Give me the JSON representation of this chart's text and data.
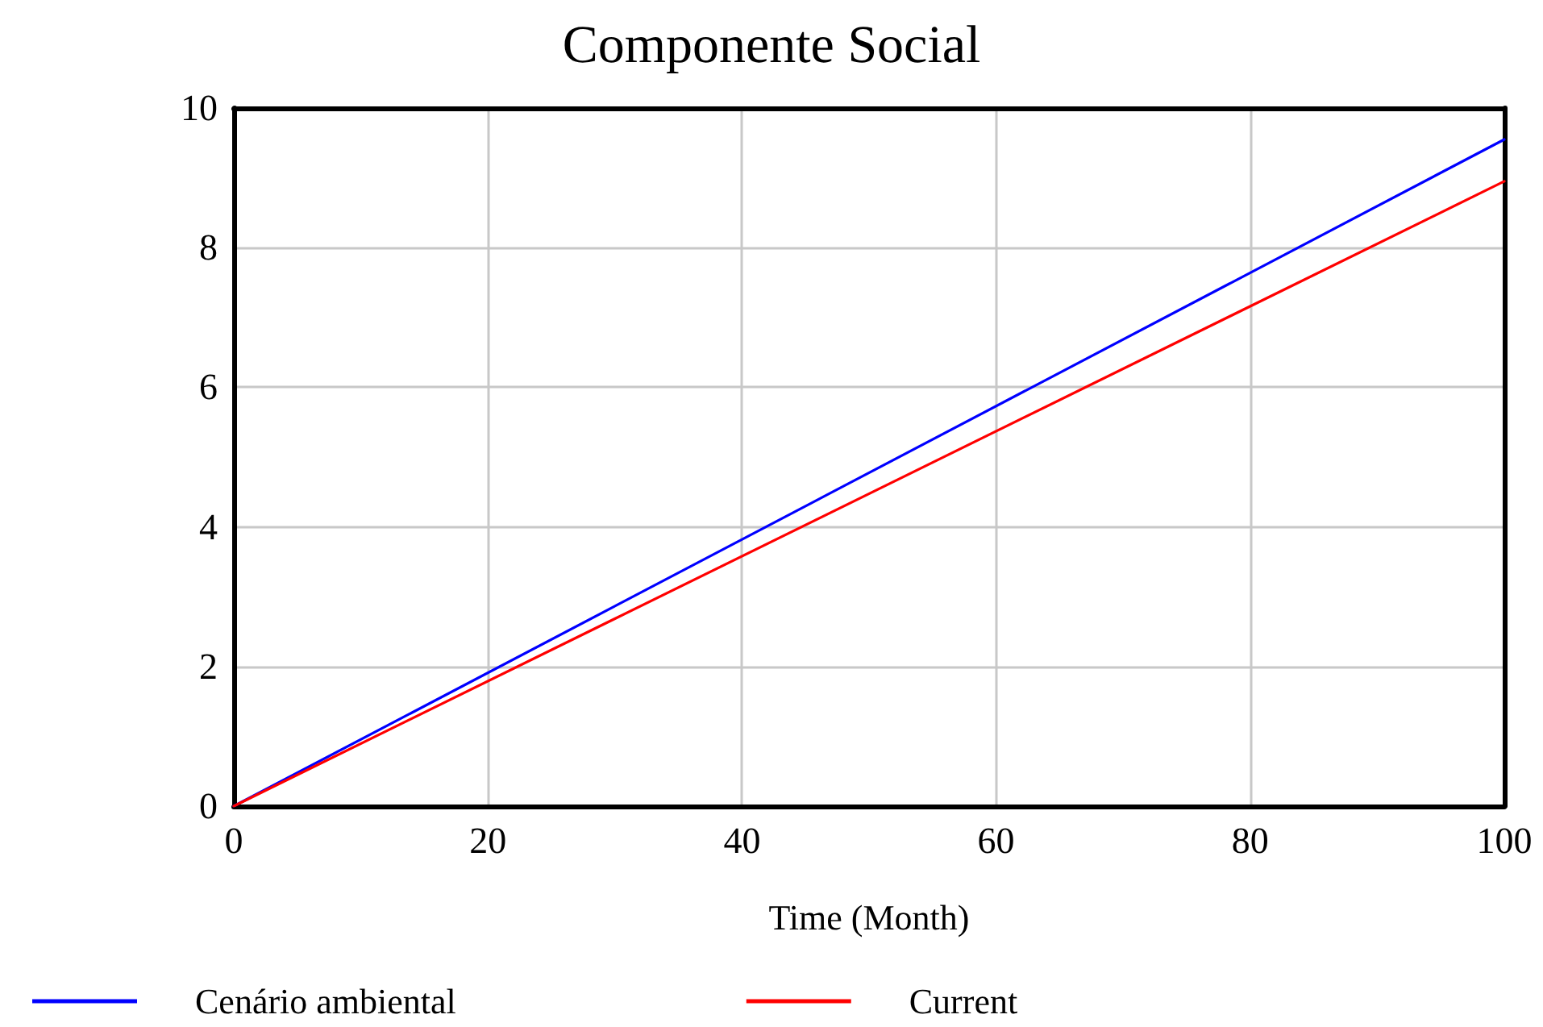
{
  "chart_data": {
    "type": "line",
    "title": "Componente Social",
    "xlabel": "Time (Month)",
    "x": [
      0,
      100
    ],
    "series": [
      {
        "name": "Cenário ambiental",
        "color": "#0000ff",
        "values": [
          0,
          9.55
        ]
      },
      {
        "name": "Current",
        "color": "#ff0000",
        "values": [
          0,
          8.95
        ]
      }
    ],
    "xlim": [
      0,
      100
    ],
    "xticks": [
      0,
      20,
      40,
      60,
      80,
      100
    ],
    "ylim": [
      0,
      10
    ],
    "yticks": [
      0,
      2,
      4,
      6,
      8,
      10
    ],
    "grid": true,
    "legend": "bottom",
    "marker": "none",
    "line_style": "solid"
  }
}
